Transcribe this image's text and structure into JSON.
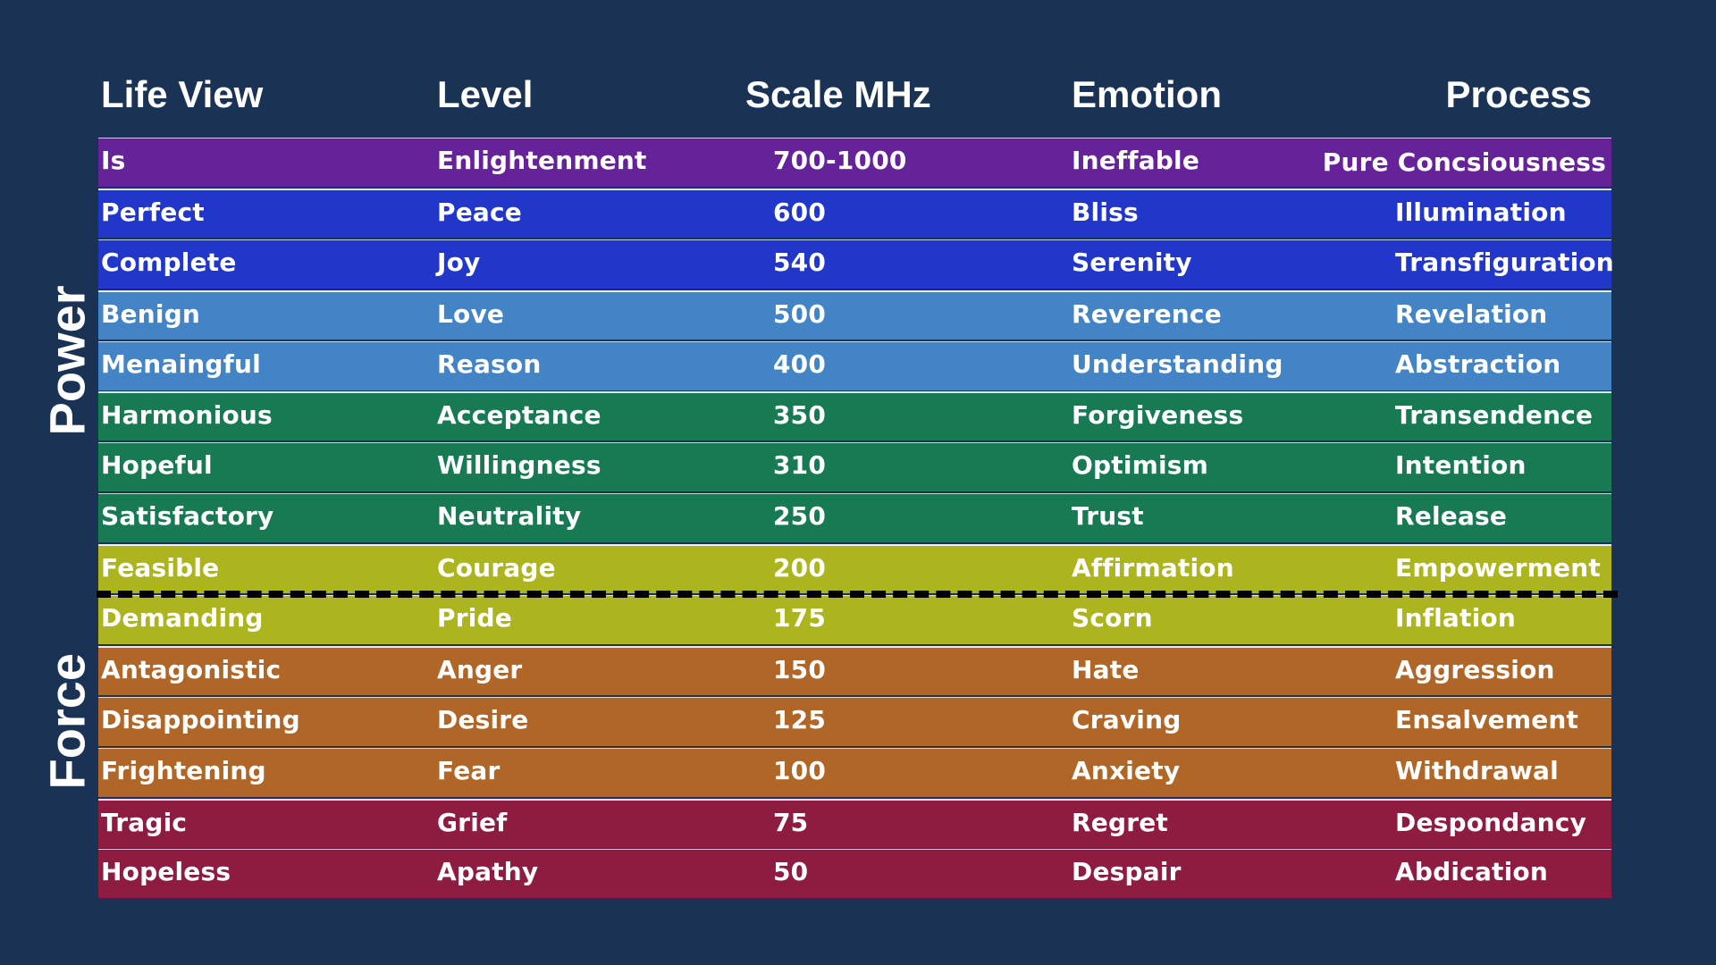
{
  "headers": {
    "life_view": "Life View",
    "level": "Level",
    "scale": "Scale MHz",
    "emotion": "Emotion",
    "process": "Process"
  },
  "side_labels": {
    "power": "Power",
    "force": "Force"
  },
  "rows": [
    {
      "life_view": "Is",
      "level": "Enlightenment",
      "scale": "700-1000",
      "emotion": "Ineffable",
      "process": "Pure Concsiousness",
      "color": "#662299"
    },
    {
      "life_view": "Perfect",
      "level": "Peace",
      "scale": "600",
      "emotion": "Bliss",
      "process": "Illumination",
      "color": "#2037c9"
    },
    {
      "life_view": "Complete",
      "level": "Joy",
      "scale": "540",
      "emotion": "Serenity",
      "process": "Transfiguration",
      "color": "#2037c9"
    },
    {
      "life_view": "Benign",
      "level": "Love",
      "scale": "500",
      "emotion": "Reverence",
      "process": "Revelation",
      "color": "#4284c6"
    },
    {
      "life_view": "Menaingful",
      "level": "Reason",
      "scale": "400",
      "emotion": "Understanding",
      "process": "Abstraction",
      "color": "#4284c6"
    },
    {
      "life_view": "Harmonious",
      "level": "Acceptance",
      "scale": "350",
      "emotion": "Forgiveness",
      "process": "Transendence",
      "color": "#187a53"
    },
    {
      "life_view": "Hopeful",
      "level": "Willingness",
      "scale": "310",
      "emotion": "Optimism",
      "process": "Intention",
      "color": "#187a53"
    },
    {
      "life_view": "Satisfactory",
      "level": "Neutrality",
      "scale": "250",
      "emotion": "Trust",
      "process": "Release",
      "color": "#187a53"
    },
    {
      "life_view": "Feasible",
      "level": "Courage",
      "scale": "200",
      "emotion": "Affirmation",
      "process": "Empowerment",
      "color": "#adb51e"
    },
    {
      "life_view": "Demanding",
      "level": "Pride",
      "scale": "175",
      "emotion": "Scorn",
      "process": "Inflation",
      "color": "#adb51e"
    },
    {
      "life_view": "Antagonistic",
      "level": "Anger",
      "scale": "150",
      "emotion": "Hate",
      "process": "Aggression",
      "color": "#af6627"
    },
    {
      "life_view": "Disappointing",
      "level": "Desire",
      "scale": "125",
      "emotion": "Craving",
      "process": "Ensalvement",
      "color": "#af6627"
    },
    {
      "life_view": "Frightening",
      "level": "Fear",
      "scale": "100",
      "emotion": "Anxiety",
      "process": "Withdrawal",
      "color": "#af6627"
    },
    {
      "life_view": "Tragic",
      "level": "Grief",
      "scale": "75",
      "emotion": "Regret",
      "process": "Despondancy",
      "color": "#8e1c40"
    },
    {
      "life_view": "Hopeless",
      "level": "Apathy",
      "scale": "50",
      "emotion": "Despair",
      "process": "Abdication",
      "color": "#8e1c40"
    }
  ],
  "colors": {
    "background": "#1a3355",
    "divider": "#000000"
  }
}
